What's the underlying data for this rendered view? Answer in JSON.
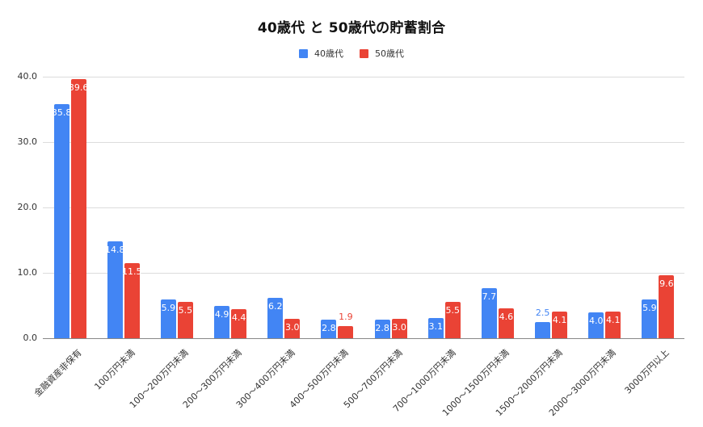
{
  "title": "40歳代 と 50歳代の貯蓄割合",
  "legend": [
    {
      "label": "40歳代",
      "color": "#4285f4"
    },
    {
      "label": "50歳代",
      "color": "#ea4335"
    }
  ],
  "chart_data": {
    "type": "bar",
    "title": "40歳代 と 50歳代の貯蓄割合",
    "xlabel": "",
    "ylabel": "",
    "ylim": [
      0,
      40
    ],
    "yticks": [
      "0.0",
      "10.0",
      "20.0",
      "30.0",
      "40.0"
    ],
    "grid": true,
    "legend_position": "top",
    "categories": [
      "金融資産非保有",
      "100万円未満",
      "100〜200万円未満",
      "200〜300万円未満",
      "300〜400万円未満",
      "400〜500万円未満",
      "500〜700万円未満",
      "700〜1000万円未満",
      "1000〜1500万円未満",
      "1500〜2000万円未満",
      "2000〜3000万円未満",
      "3000万円以上"
    ],
    "series": [
      {
        "name": "40歳代",
        "color": "#4285f4",
        "values": [
          35.8,
          14.8,
          5.9,
          4.9,
          6.2,
          2.8,
          2.8,
          3.1,
          7.7,
          2.5,
          4.0,
          5.9
        ]
      },
      {
        "name": "50歳代",
        "color": "#ea4335",
        "values": [
          39.6,
          11.5,
          5.5,
          4.4,
          3.0,
          1.9,
          3.0,
          5.5,
          4.6,
          4.1,
          4.1,
          9.6
        ]
      }
    ]
  }
}
